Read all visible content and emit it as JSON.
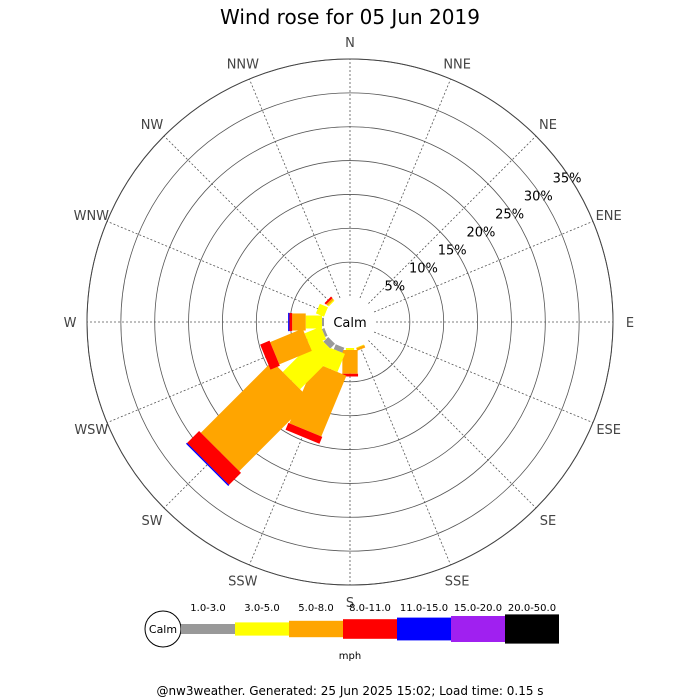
{
  "title": "Wind rose for 05 Jun 2019",
  "footer": "@nw3weather. Generated: 25 Jun 2025 15:02; Load time: 0.15 s",
  "chart_data": {
    "type": "wind-rose",
    "title": "Wind rose for 05 Jun 2019",
    "directions": [
      "N",
      "NNE",
      "NE",
      "ENE",
      "E",
      "ESE",
      "SE",
      "SSE",
      "S",
      "SSW",
      "SW",
      "WSW",
      "W",
      "WNW",
      "NW",
      "NNW"
    ],
    "ring_labels": [
      "5%",
      "10%",
      "15%",
      "20%",
      "25%",
      "30%",
      "35%"
    ],
    "rmax_percent": 35,
    "calm_label": "Calm",
    "speed_unit": "mph",
    "speed_bins": [
      {
        "label": "1.0-3.0",
        "color": "#999999"
      },
      {
        "label": "3.0-5.0",
        "color": "#ffff00"
      },
      {
        "label": "5.0-8.0",
        "color": "#ffa500"
      },
      {
        "label": "8.0-11.0",
        "color": "#ff0000"
      },
      {
        "label": "11.0-15.0",
        "color": "#0000ff"
      },
      {
        "label": "15.0-20.0",
        "color": "#a020f0"
      },
      {
        "label": "20.0-50.0",
        "color": "#000000"
      }
    ],
    "series": [
      {
        "direction": "N",
        "values": [
          0,
          0,
          0,
          0,
          0,
          0,
          0
        ]
      },
      {
        "direction": "NNE",
        "values": [
          0,
          0,
          0,
          0,
          0,
          0,
          0
        ]
      },
      {
        "direction": "NE",
        "values": [
          0,
          0,
          0,
          0,
          0,
          0,
          0
        ]
      },
      {
        "direction": "ENE",
        "values": [
          0,
          0,
          0,
          0,
          0,
          0,
          0
        ]
      },
      {
        "direction": "E",
        "values": [
          0,
          0,
          0,
          0,
          0,
          0,
          0
        ]
      },
      {
        "direction": "ESE",
        "values": [
          0,
          0,
          0,
          0,
          0,
          0,
          0
        ]
      },
      {
        "direction": "SE",
        "values": [
          0,
          0,
          0,
          0,
          0,
          0,
          0
        ]
      },
      {
        "direction": "SSE",
        "values": [
          0,
          0.1,
          0.4,
          0,
          0,
          0,
          0
        ]
      },
      {
        "direction": "S",
        "values": [
          0,
          0.3,
          3.5,
          0.4,
          0,
          0,
          0
        ]
      },
      {
        "direction": "SSW",
        "values": [
          0.8,
          2.9,
          9.7,
          1.1,
          0,
          0,
          0
        ]
      },
      {
        "direction": "SW",
        "values": [
          1.0,
          7.4,
          14.9,
          2.5,
          0.2,
          0,
          0
        ]
      },
      {
        "direction": "WSW",
        "values": [
          0.4,
          2.6,
          5.2,
          1.5,
          0,
          0,
          0
        ]
      },
      {
        "direction": "W",
        "values": [
          0.3,
          2.4,
          2.0,
          0.4,
          0.2,
          0,
          0
        ]
      },
      {
        "direction": "WNW",
        "values": [
          0,
          1.3,
          0,
          0,
          0,
          0,
          0
        ]
      },
      {
        "direction": "NW",
        "values": [
          0,
          0.2,
          0.3,
          0.3,
          0,
          0,
          0
        ]
      },
      {
        "direction": "NNW",
        "values": [
          0,
          0,
          0,
          0,
          0,
          0,
          0
        ]
      }
    ]
  }
}
